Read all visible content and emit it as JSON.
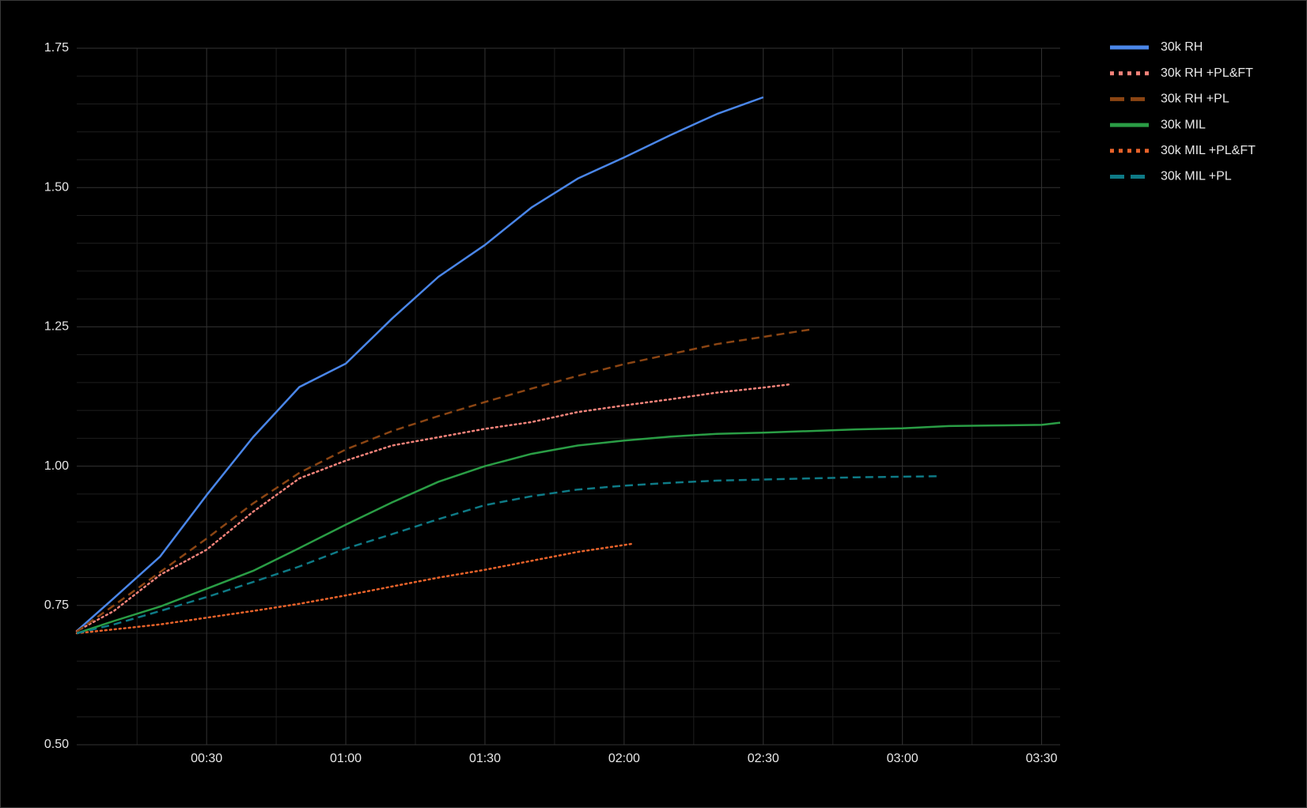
{
  "chart_data": {
    "type": "line",
    "xlim": [
      2,
      214
    ],
    "ylim": [
      0.5,
      1.75
    ],
    "xticks": [
      {
        "value": 30,
        "label": "00:30"
      },
      {
        "value": 60,
        "label": "01:00"
      },
      {
        "value": 90,
        "label": "01:30"
      },
      {
        "value": 120,
        "label": "02:00"
      },
      {
        "value": 150,
        "label": "02:30"
      },
      {
        "value": 180,
        "label": "03:00"
      },
      {
        "value": 210,
        "label": "03:30"
      }
    ],
    "yticks": [
      {
        "value": 0.5,
        "label": "0.50"
      },
      {
        "value": 0.75,
        "label": "0.75"
      },
      {
        "value": 1,
        "label": "1.00"
      },
      {
        "value": 1.25,
        "label": "1.25"
      },
      {
        "value": 1.5,
        "label": "1.50"
      },
      {
        "value": 1.75,
        "label": "1.75"
      }
    ],
    "grid": true,
    "legend": "right",
    "series": [
      {
        "name": "30k RH",
        "color": "#4a86e8",
        "line_style": "solid",
        "x": [
          2,
          10,
          20,
          30,
          40,
          50,
          60,
          70,
          80,
          90,
          100,
          110,
          120,
          130,
          140,
          150
        ],
        "values": [
          0.704,
          0.763,
          0.838,
          0.948,
          1.052,
          1.142,
          1.184,
          1.265,
          1.34,
          1.397,
          1.464,
          1.516,
          1.554,
          1.594,
          1.632,
          1.662
        ]
      },
      {
        "name": "30k RH +PL&FT",
        "color": "#f4837a",
        "line_style": "dotted",
        "x": [
          2,
          10,
          20,
          30,
          40,
          50,
          60,
          70,
          80,
          90,
          100,
          110,
          120,
          130,
          140,
          150,
          156
        ],
        "values": [
          0.704,
          0.74,
          0.805,
          0.85,
          0.918,
          0.978,
          1.01,
          1.037,
          1.052,
          1.067,
          1.079,
          1.097,
          1.109,
          1.12,
          1.132,
          1.141,
          1.147
        ]
      },
      {
        "name": "30k RH +PL",
        "color": "#8b4513",
        "line_style": "dashed",
        "x": [
          2,
          10,
          20,
          30,
          40,
          50,
          60,
          70,
          80,
          90,
          100,
          110,
          120,
          130,
          140,
          150,
          160
        ],
        "values": [
          0.703,
          0.75,
          0.81,
          0.87,
          0.933,
          0.988,
          1.03,
          1.063,
          1.09,
          1.115,
          1.139,
          1.162,
          1.183,
          1.201,
          1.219,
          1.232,
          1.245
        ]
      },
      {
        "name": "30k MIL",
        "color": "#2a9d45",
        "line_style": "solid",
        "x": [
          2,
          10,
          20,
          30,
          40,
          50,
          60,
          70,
          80,
          90,
          100,
          110,
          120,
          130,
          140,
          150,
          160,
          170,
          180,
          190,
          200,
          210,
          214
        ],
        "values": [
          0.7,
          0.722,
          0.748,
          0.78,
          0.812,
          0.853,
          0.895,
          0.935,
          0.972,
          1.0,
          1.022,
          1.037,
          1.046,
          1.053,
          1.058,
          1.06,
          1.063,
          1.066,
          1.068,
          1.072,
          1.073,
          1.074,
          1.078
        ]
      },
      {
        "name": "30k MIL +PL&FT",
        "color": "#e8622a",
        "line_style": "dotted",
        "x": [
          2,
          10,
          20,
          30,
          40,
          50,
          60,
          70,
          80,
          90,
          100,
          110,
          122
        ],
        "values": [
          0.7,
          0.707,
          0.716,
          0.728,
          0.74,
          0.753,
          0.768,
          0.784,
          0.8,
          0.814,
          0.83,
          0.846,
          0.861
        ]
      },
      {
        "name": "30k MIL +PL",
        "color": "#0e7a86",
        "line_style": "dashed",
        "x": [
          2,
          10,
          20,
          30,
          40,
          50,
          60,
          70,
          80,
          90,
          100,
          110,
          120,
          130,
          140,
          150,
          160,
          170,
          188
        ],
        "values": [
          0.7,
          0.716,
          0.74,
          0.765,
          0.792,
          0.82,
          0.852,
          0.878,
          0.905,
          0.93,
          0.946,
          0.958,
          0.965,
          0.97,
          0.974,
          0.976,
          0.978,
          0.98,
          0.982
        ]
      }
    ]
  }
}
